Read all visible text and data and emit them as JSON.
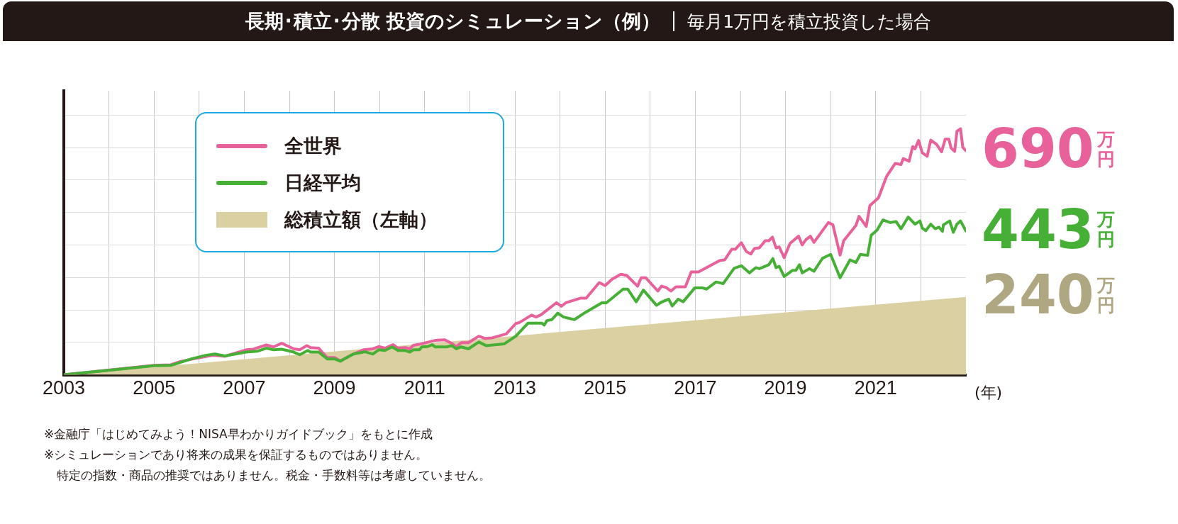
{
  "chart_data": {
    "type": "line",
    "title": "長期･積立･分散 投資のシミュレーション（例）",
    "subtitle": "毎月1万円を積立投資した場合",
    "xlabel": "(年)",
    "xlim": [
      2003,
      2023
    ],
    "xticks": [
      2003,
      {
        "value": 2004,
        "label": null
      },
      2005,
      {
        "value": 2006,
        "label": null
      },
      2007,
      {
        "value": 2008,
        "label": null
      },
      2009,
      {
        "value": 2010,
        "label": null
      },
      2011,
      {
        "value": 2012,
        "label": null
      },
      2013,
      {
        "value": 2014,
        "label": null
      },
      2015,
      {
        "value": 2016,
        "label": null
      },
      2017,
      {
        "value": 2018,
        "label": null
      },
      2019,
      {
        "value": 2020,
        "label": null
      },
      2021,
      {
        "value": 2022,
        "label": null
      }
    ],
    "ylim": [
      0,
      875
    ],
    "yticks": [
      {
        "value": 0,
        "label": null
      },
      {
        "value": 100,
        "label": null
      },
      {
        "value": 200,
        "label": null
      },
      {
        "value": 300,
        "label": null
      },
      {
        "value": 400,
        "label": null
      },
      {
        "value": 500,
        "label": null
      },
      {
        "value": 600,
        "label": null
      },
      {
        "value": 700,
        "label": null
      },
      {
        "value": 800,
        "label": null
      }
    ],
    "tick_labels": "x",
    "grid": true,
    "legend": "top left",
    "marker": "none",
    "line_style": "solid",
    "series": [
      {
        "name": "総積立額（左軸）",
        "type": "area",
        "color": "#dbd0a2",
        "x": [
          2003,
          2023
        ],
        "values": [
          0,
          240
        ],
        "value_labels": [
          null,
          "240万円"
        ]
      },
      {
        "name": "日経平均",
        "color": "#45b035",
        "x": [
          2003,
          2005,
          2005.37,
          2005.83,
          2006.14,
          2006.35,
          2006.57,
          2007.04,
          2007.3,
          2007.49,
          2007.65,
          2007.83,
          2008.1,
          2008.23,
          2008.41,
          2008.47,
          2008.65,
          2008.84,
          2009,
          2009.13,
          2009.42,
          2009.68,
          2009.85,
          2009.98,
          2010.12,
          2010.28,
          2010.41,
          2010.57,
          2010.67,
          2010.75,
          2010.88,
          2010.94,
          2011.07,
          2011.17,
          2011.23,
          2011.49,
          2011.6,
          2011.7,
          2011.81,
          2011.97,
          2012.2,
          2012.36,
          2012.76,
          2013.02,
          2013.29,
          2013.6,
          2013.65,
          2013.71,
          2013.82,
          2013.95,
          2014.08,
          2014.32,
          2014.56,
          2014.93,
          2015.03,
          2015.4,
          2015.5,
          2015.69,
          2015.85,
          2016.14,
          2016.25,
          2016.41,
          2016.49,
          2016.62,
          2016.73,
          2016.99,
          2017.15,
          2017.25,
          2017.46,
          2017.62,
          2017.86,
          2018.02,
          2018.2,
          2018.34,
          2018.42,
          2018.63,
          2018.72,
          2018.79,
          2018.86,
          2018.97,
          2019.16,
          2019.23,
          2019.31,
          2019.37,
          2019.53,
          2019.63,
          2019.82,
          2020,
          2020.21,
          2020.43,
          2020.56,
          2020.66,
          2020.82,
          2020.9,
          2021.03,
          2021.16,
          2021.32,
          2021.45,
          2021.56,
          2021.72,
          2021.87,
          2021.98,
          2022.03,
          2022.11,
          2022.22,
          2022.32,
          2022.4,
          2022.48,
          2022.5,
          2022.64,
          2022.72,
          2022.8,
          2022.88,
          2023
        ],
        "values": [
          0,
          28,
          29,
          49,
          60,
          64,
          58,
          70,
          73,
          82,
          77,
          79,
          70,
          62,
          75,
          70,
          70,
          49,
          49,
          42,
          64,
          71,
          64,
          77,
          75,
          86,
          75,
          75,
          70,
          77,
          77,
          86,
          87,
          93,
          86,
          86,
          90,
          80,
          86,
          80,
          101,
          90,
          95,
          119,
          159,
          159,
          153,
          167,
          170,
          190,
          178,
          170,
          192,
          222,
          222,
          264,
          264,
          225,
          261,
          214,
          224,
          233,
          212,
          233,
          225,
          268,
          268,
          264,
          286,
          281,
          328,
          336,
          314,
          330,
          327,
          339,
          358,
          330,
          334,
          303,
          322,
          322,
          339,
          314,
          327,
          319,
          359,
          371,
          299,
          354,
          346,
          371,
          368,
          430,
          446,
          477,
          469,
          472,
          450,
          486,
          464,
          474,
          452,
          444,
          464,
          450,
          455,
          442,
          462,
          474,
          439,
          464,
          474,
          443
        ],
        "value_labels": [
          null,
          null,
          null,
          null,
          null,
          null,
          null,
          null,
          null,
          null,
          null,
          null,
          null,
          null,
          null,
          null,
          null,
          null,
          null,
          null,
          null,
          null,
          null,
          null,
          null,
          null,
          null,
          null,
          null,
          null,
          null,
          null,
          null,
          null,
          null,
          null,
          null,
          null,
          null,
          null,
          null,
          null,
          null,
          null,
          null,
          null,
          null,
          null,
          null,
          null,
          null,
          null,
          null,
          null,
          null,
          null,
          null,
          null,
          null,
          null,
          null,
          null,
          null,
          null,
          null,
          null,
          null,
          null,
          null,
          null,
          null,
          null,
          null,
          null,
          null,
          null,
          null,
          null,
          null,
          null,
          null,
          null,
          null,
          null,
          null,
          null,
          null,
          null,
          null,
          null,
          null,
          null,
          null,
          null,
          null,
          null,
          null,
          null,
          null,
          null,
          null,
          null,
          null,
          null,
          null,
          null,
          null,
          null,
          null,
          null,
          null,
          null,
          null,
          "443万円"
        ]
      },
      {
        "name": "全世界",
        "color": "#e8619a",
        "x": [
          2003,
          2005,
          2005.37,
          2005.56,
          2005.83,
          2006.3,
          2006.57,
          2007.04,
          2007.2,
          2007.49,
          2007.65,
          2007.83,
          2008.1,
          2008.23,
          2008.39,
          2008.47,
          2008.65,
          2008.84,
          2009,
          2009.13,
          2009.42,
          2009.64,
          2009.85,
          2009.98,
          2010.12,
          2010.3,
          2010.41,
          2010.57,
          2010.67,
          2010.75,
          2010.91,
          2011.23,
          2011.44,
          2011.6,
          2011.7,
          2011.81,
          2011.97,
          2012.2,
          2012.34,
          2012.5,
          2012.81,
          2013.02,
          2013.1,
          2013.37,
          2013.47,
          2013.58,
          2013.92,
          2014.03,
          2014.13,
          2014.45,
          2014.58,
          2014.87,
          2015,
          2015.16,
          2015.35,
          2015.48,
          2015.72,
          2015.8,
          2015.9,
          2016.17,
          2016.25,
          2016.35,
          2016.46,
          2016.57,
          2016.78,
          2016.91,
          2017.07,
          2017.54,
          2017.65,
          2017.81,
          2017.89,
          2018.02,
          2018.13,
          2018.23,
          2018.31,
          2018.42,
          2018.55,
          2018.63,
          2018.71,
          2018.79,
          2018.86,
          2018.97,
          2019.1,
          2019.29,
          2019.37,
          2019.45,
          2019.55,
          2019.63,
          2019.95,
          2020.05,
          2020.21,
          2020.29,
          2020.56,
          2020.63,
          2020.79,
          2020.87,
          2021.06,
          2021.24,
          2021.43,
          2021.56,
          2021.61,
          2021.74,
          2021.82,
          2021.87,
          2021.95,
          2022.03,
          2022.14,
          2022.22,
          2022.35,
          2022.46,
          2022.54,
          2022.62,
          2022.67,
          2022.75,
          2022.8,
          2022.88,
          2022.93,
          2023
        ],
        "values": [
          0,
          29,
          31,
          40,
          48,
          60,
          57,
          77,
          79,
          92,
          86,
          97,
          80,
          77,
          90,
          84,
          82,
          53,
          53,
          43,
          64,
          77,
          80,
          87,
          82,
          93,
          82,
          84,
          80,
          91,
          95,
          106,
          108,
          97,
          86,
          99,
          99,
          119,
          112,
          114,
          126,
          158,
          161,
          184,
          178,
          185,
          222,
          211,
          222,
          236,
          236,
          284,
          275,
          295,
          310,
          306,
          273,
          299,
          299,
          258,
          273,
          269,
          258,
          271,
          271,
          317,
          317,
          352,
          354,
          387,
          387,
          407,
          380,
          372,
          389,
          391,
          413,
          413,
          424,
          391,
          394,
          361,
          405,
          427,
          400,
          416,
          427,
          408,
          469,
          462,
          369,
          413,
          460,
          488,
          457,
          521,
          545,
          611,
          651,
          648,
          666,
          658,
          703,
          696,
          722,
          684,
          673,
          723,
          710,
          687,
          726,
          726,
          699,
          688,
          750,
          758,
          701,
          690
        ],
        "value_labels": [
          null,
          null,
          null,
          null,
          null,
          null,
          null,
          null,
          null,
          null,
          null,
          null,
          null,
          null,
          null,
          null,
          null,
          null,
          null,
          null,
          null,
          null,
          null,
          null,
          null,
          null,
          null,
          null,
          null,
          null,
          null,
          null,
          null,
          null,
          null,
          null,
          null,
          null,
          null,
          null,
          null,
          null,
          null,
          null,
          null,
          null,
          null,
          null,
          null,
          null,
          null,
          null,
          null,
          null,
          null,
          null,
          null,
          null,
          null,
          null,
          null,
          null,
          null,
          null,
          null,
          null,
          null,
          null,
          null,
          null,
          null,
          null,
          null,
          null,
          null,
          null,
          null,
          null,
          null,
          null,
          null,
          null,
          null,
          null,
          null,
          null,
          null,
          null,
          null,
          null,
          null,
          null,
          null,
          null,
          null,
          null,
          null,
          null,
          null,
          null,
          null,
          null,
          null,
          null,
          null,
          null,
          null,
          null,
          null,
          null,
          null,
          null,
          null,
          null,
          null,
          null,
          null,
          "690万円"
        ]
      }
    ],
    "annotations": [
      "※金融庁「はじめてみよう！NISA早わかりガイドブック」をもとに作成",
      "※シミュレーションであり将来の成果を保証するものではありません。",
      "特定の指数・商品の推奨ではありません。税金・手数料等は考慮していません。"
    ]
  }
}
